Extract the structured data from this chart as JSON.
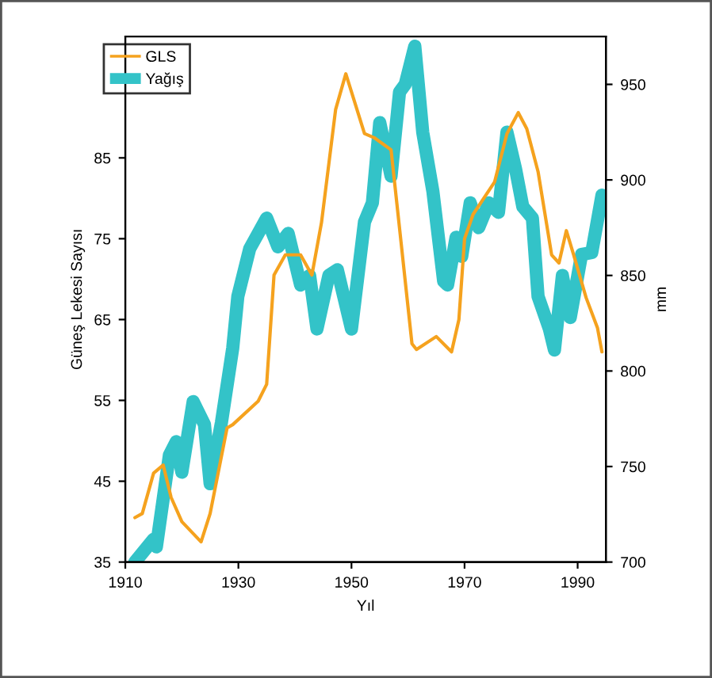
{
  "chart_data": {
    "type": "line",
    "xlabel": "Yıl",
    "ylabel": "Güneş Lekesi Sayısı",
    "y2label": "mm",
    "xlim": [
      1910,
      1995
    ],
    "xticks": [
      1910,
      1930,
      1950,
      1970,
      1990
    ],
    "ylim": [
      35,
      100
    ],
    "yticks": [
      35,
      45,
      55,
      65,
      75,
      85
    ],
    "y2lim": [
      700,
      975
    ],
    "y2ticks": [
      700,
      750,
      800,
      850,
      900,
      950
    ],
    "legend": "top left",
    "series": [
      {
        "name": "GLS",
        "color": "#f5a21e",
        "x": [
          1911.7,
          1913,
          1915,
          1916.7,
          1918.1,
          1920,
          1923.4,
          1925,
          1928,
          1929,
          1933.5,
          1935,
          1936.3,
          1938.3,
          1941,
          1943,
          1944.7,
          1947.2,
          1949,
          1952.3,
          1954,
          1957,
          1958.7,
          1960.7,
          1961.5,
          1965,
          1967.7,
          1969,
          1970,
          1971.5,
          1975.3,
          1977.5,
          1979.5,
          1981,
          1983,
          1985.4,
          1986.7,
          1988,
          1989.3,
          1991.5,
          1993.5,
          1994.3
        ],
        "values": [
          40.5,
          41,
          46,
          47,
          43,
          40,
          37.5,
          41,
          51.6,
          52,
          54.9,
          57,
          70.5,
          73,
          73,
          70.5,
          77,
          91,
          95.4,
          88,
          87.5,
          86,
          75,
          62,
          61.3,
          62.9,
          61,
          65,
          75,
          78,
          82,
          88,
          90.6,
          88.6,
          83.3,
          73,
          72,
          76,
          73,
          67.7,
          64,
          61
        ]
      },
      {
        "name": "Yağış",
        "color": "#33c3c8",
        "axis": "y2",
        "x": [
          1911.7,
          1915,
          1915.5,
          1917.8,
          1919,
          1920,
          1922,
          1924,
          1925,
          1927,
          1929,
          1929.9,
          1932,
          1935,
          1937,
          1938.8,
          1941,
          1942.6,
          1943.9,
          1946,
          1947.5,
          1950,
          1952.3,
          1953.7,
          1955,
          1957,
          1958.5,
          1959.5,
          1961.2,
          1962.6,
          1964.4,
          1966.3,
          1967,
          1968.5,
          1969.5,
          1971,
          1972.5,
          1974.3,
          1976,
          1977.5,
          1979,
          1980.3,
          1982,
          1983,
          1985,
          1985.9,
          1987.3,
          1988.7,
          1990.7,
          1992.5,
          1994.3
        ],
        "values": [
          700,
          712,
          708,
          756,
          763,
          747,
          784,
          772,
          741,
          773,
          812,
          839,
          864,
          880,
          865,
          872,
          845,
          850,
          822,
          850,
          853,
          822,
          878,
          888,
          930,
          902,
          946,
          950,
          970,
          925,
          894,
          847,
          845,
          870,
          860,
          888,
          875,
          888,
          883,
          925,
          906,
          886,
          880,
          839,
          822,
          811,
          850,
          828,
          861,
          862,
          892
        ]
      }
    ]
  }
}
